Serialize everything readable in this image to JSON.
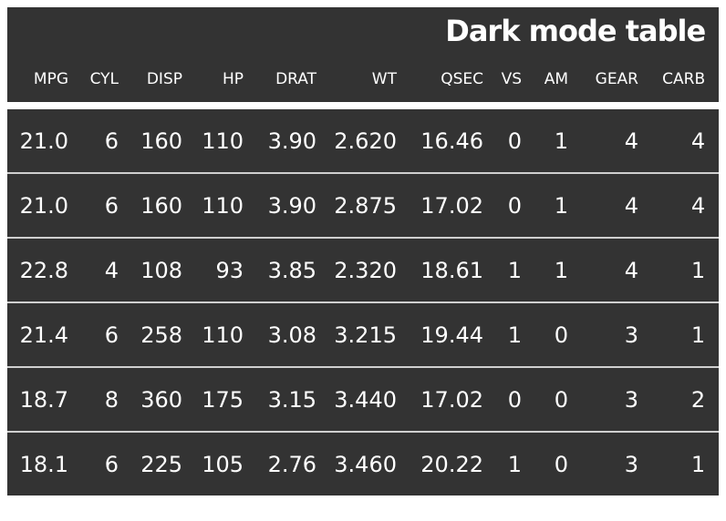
{
  "page": {
    "background": "#ffffff"
  },
  "table": {
    "title": "Dark mode table",
    "theme": {
      "surface": "#333333",
      "text": "#ffffff",
      "row_divider": "#d0d0d0",
      "header_gap": "#ffffff"
    },
    "columns": [
      "MPG",
      "CYL",
      "DISP",
      "HP",
      "DRAT",
      "WT",
      "QSEC",
      "VS",
      "AM",
      "GEAR",
      "CARB"
    ],
    "rows": [
      [
        "21.0",
        "6",
        "160",
        "110",
        "3.90",
        "2.620",
        "16.46",
        "0",
        "1",
        "4",
        "4"
      ],
      [
        "21.0",
        "6",
        "160",
        "110",
        "3.90",
        "2.875",
        "17.02",
        "0",
        "1",
        "4",
        "4"
      ],
      [
        "22.8",
        "4",
        "108",
        "93",
        "3.85",
        "2.320",
        "18.61",
        "1",
        "1",
        "4",
        "1"
      ],
      [
        "21.4",
        "6",
        "258",
        "110",
        "3.08",
        "3.215",
        "19.44",
        "1",
        "0",
        "3",
        "1"
      ],
      [
        "18.7",
        "8",
        "360",
        "175",
        "3.15",
        "3.440",
        "17.02",
        "0",
        "0",
        "3",
        "2"
      ],
      [
        "18.1",
        "6",
        "225",
        "105",
        "2.76",
        "3.460",
        "20.22",
        "1",
        "0",
        "3",
        "1"
      ]
    ]
  },
  "chart_data": {
    "type": "table",
    "title": "Dark mode table",
    "columns": [
      "MPG",
      "CYL",
      "DISP",
      "HP",
      "DRAT",
      "WT",
      "QSEC",
      "VS",
      "AM",
      "GEAR",
      "CARB"
    ],
    "rows": [
      [
        21.0,
        6,
        160,
        110,
        3.9,
        2.62,
        16.46,
        0,
        1,
        4,
        4
      ],
      [
        21.0,
        6,
        160,
        110,
        3.9,
        2.875,
        17.02,
        0,
        1,
        4,
        4
      ],
      [
        22.8,
        4,
        108,
        93,
        3.85,
        2.32,
        18.61,
        1,
        1,
        4,
        1
      ],
      [
        21.4,
        6,
        258,
        110,
        3.08,
        3.215,
        19.44,
        1,
        0,
        3,
        1
      ],
      [
        18.7,
        8,
        360,
        175,
        3.15,
        3.44,
        17.02,
        0,
        0,
        3,
        2
      ],
      [
        18.1,
        6,
        225,
        105,
        2.76,
        3.46,
        20.22,
        1,
        0,
        3,
        1
      ]
    ],
    "layout_hints": {
      "theme": "dark",
      "numeric_alignment": "right",
      "row_striping": false
    }
  }
}
